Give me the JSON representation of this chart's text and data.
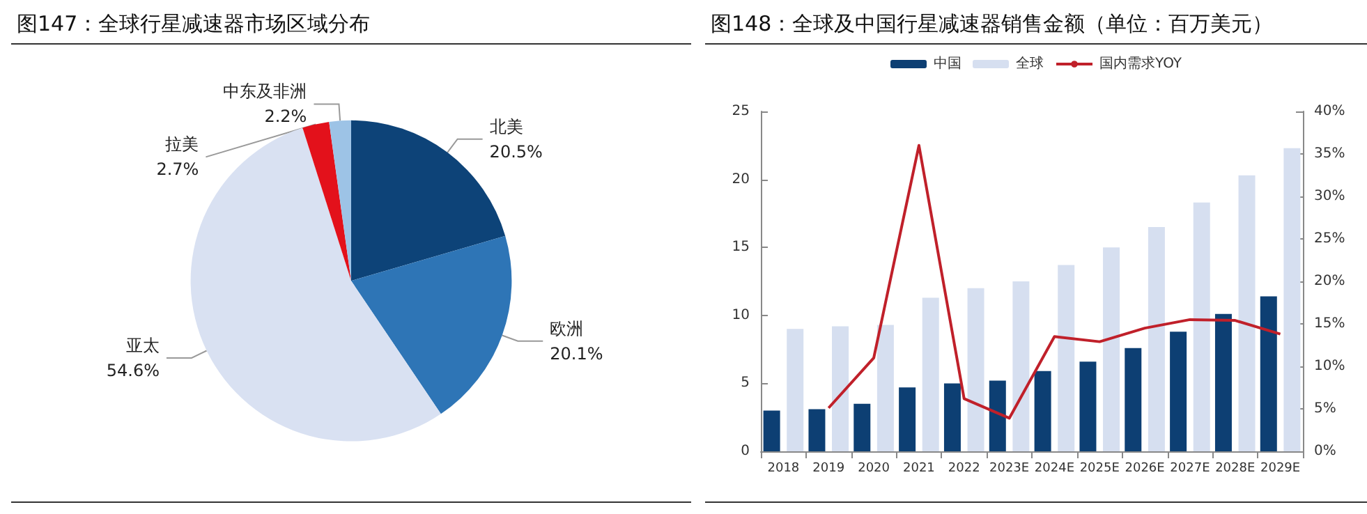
{
  "chart_data": [
    {
      "type": "pie",
      "title": "图147：全球行星减速器市场区域分布",
      "categories": [
        "北美",
        "欧洲",
        "亚太",
        "拉美",
        "中东及非洲"
      ],
      "values": [
        20.5,
        20.1,
        54.6,
        2.7,
        2.2
      ],
      "colors": [
        "#0d4378",
        "#2e75b6",
        "#d9e1f2",
        "#e3111b",
        "#9dc3e6"
      ],
      "value_labels": [
        "20.5%",
        "20.1%",
        "54.6%",
        "2.7%",
        "2.2%"
      ],
      "legend": false
    },
    {
      "type": "bar",
      "title": "图148：全球及中国行星减速器销售金额（单位：百万美元）",
      "categories": [
        "2018",
        "2019",
        "2020",
        "2021",
        "2022",
        "2023E",
        "2024E",
        "2025E",
        "2026E",
        "2027E",
        "2028E",
        "2029E"
      ],
      "series": [
        {
          "name": "中国",
          "color": "#0d3f73",
          "values": [
            3.0,
            3.1,
            3.5,
            4.7,
            5.0,
            5.2,
            5.9,
            6.6,
            7.6,
            8.8,
            10.1,
            11.4
          ]
        },
        {
          "name": "全球",
          "color": "#d6dff0",
          "values": [
            9.0,
            9.2,
            9.3,
            11.3,
            12.0,
            12.5,
            13.7,
            15.0,
            16.5,
            18.3,
            20.3,
            22.3
          ]
        },
        {
          "name": "国内需求YOY",
          "type": "line",
          "axis": "y2",
          "color": "#c0202a",
          "values": [
            null,
            5.1,
            11.0,
            36.0,
            6.2,
            3.9,
            13.5,
            12.9,
            14.5,
            15.5,
            15.4,
            13.8
          ]
        }
      ],
      "ylim": [
        0,
        25
      ],
      "yticks": [
        0,
        5,
        10,
        15,
        20,
        25
      ],
      "y2lim": [
        0,
        40
      ],
      "y2ticks": [
        {
          "value": 0,
          "label": "0%"
        },
        {
          "value": 5,
          "label": "5%"
        },
        {
          "value": 10,
          "label": "10%"
        },
        {
          "value": 15,
          "label": "15%"
        },
        {
          "value": 20,
          "label": "20%"
        },
        {
          "value": 25,
          "label": "25%"
        },
        {
          "value": 30,
          "label": "30%"
        },
        {
          "value": 35,
          "label": "35%"
        },
        {
          "value": 40,
          "label": "40%"
        }
      ],
      "grid": false,
      "legend": "top",
      "marker": "none",
      "line_style": "solid"
    }
  ]
}
